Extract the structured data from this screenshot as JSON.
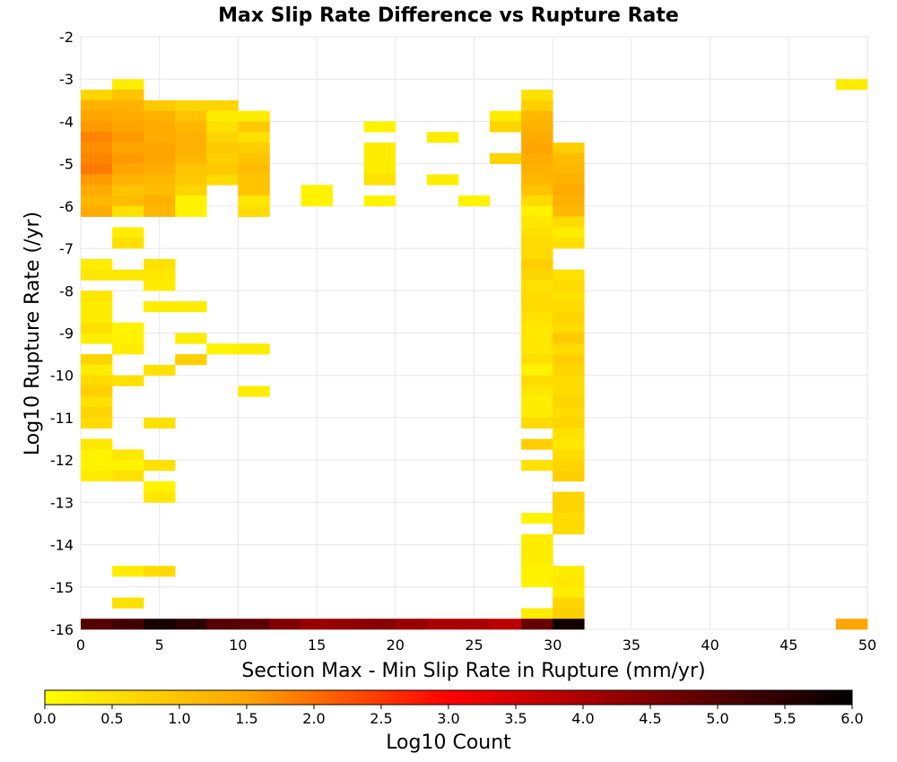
{
  "chart_data": {
    "type": "heatmap",
    "title": "Max Slip Rate Difference vs Rupture Rate",
    "xlabel": "Section Max - Min Slip Rate in Rupture (mm/yr)",
    "ylabel": "Log10 Rupture Rate (/yr)",
    "xlim": [
      0,
      50
    ],
    "ylim": [
      -16,
      -2
    ],
    "x_ticks": [
      0,
      5,
      10,
      15,
      20,
      25,
      30,
      35,
      40,
      45,
      50
    ],
    "y_ticks": [
      -2,
      -3,
      -4,
      -5,
      -6,
      -7,
      -8,
      -9,
      -10,
      -11,
      -12,
      -13,
      -14,
      -15,
      -16
    ],
    "grid": true,
    "cell_size": {
      "dx": 2,
      "dy": 0.25
    },
    "colorbar": {
      "label": "Log10 Count",
      "range": [
        0,
        6
      ],
      "ticks": [
        "0.0",
        "0.5",
        "1.0",
        "1.5",
        "2.0",
        "2.5",
        "3.0",
        "3.5",
        "4.0",
        "4.5",
        "5.0",
        "5.5",
        "6.0"
      ],
      "stops": [
        "#ffff00",
        "#ffa500",
        "#ff0000",
        "#000000"
      ]
    },
    "cells": [
      {
        "x": 0,
        "y": -3.5,
        "v": 0.7
      },
      {
        "x": 0,
        "y": -3.75,
        "v": 1.3
      },
      {
        "x": 0,
        "y": -4.0,
        "v": 1.5
      },
      {
        "x": 0,
        "y": -4.25,
        "v": 1.6
      },
      {
        "x": 0,
        "y": -4.5,
        "v": 1.8
      },
      {
        "x": 0,
        "y": -4.75,
        "v": 1.7
      },
      {
        "x": 0,
        "y": -5.0,
        "v": 1.8
      },
      {
        "x": 0,
        "y": -5.25,
        "v": 1.9
      },
      {
        "x": 0,
        "y": -5.5,
        "v": 1.6
      },
      {
        "x": 0,
        "y": -5.75,
        "v": 1.4
      },
      {
        "x": 0,
        "y": -6.0,
        "v": 1.2
      },
      {
        "x": 0,
        "y": -6.25,
        "v": 1.4
      },
      {
        "x": 2,
        "y": -3.25,
        "v": 0.3
      },
      {
        "x": 2,
        "y": -3.5,
        "v": 1.0
      },
      {
        "x": 2,
        "y": -3.75,
        "v": 1.3
      },
      {
        "x": 2,
        "y": -4.0,
        "v": 1.4
      },
      {
        "x": 2,
        "y": -4.25,
        "v": 1.5
      },
      {
        "x": 2,
        "y": -4.5,
        "v": 1.6
      },
      {
        "x": 2,
        "y": -4.75,
        "v": 1.5
      },
      {
        "x": 2,
        "y": -5.0,
        "v": 1.6
      },
      {
        "x": 2,
        "y": -5.25,
        "v": 1.5
      },
      {
        "x": 2,
        "y": -5.5,
        "v": 1.3
      },
      {
        "x": 2,
        "y": -5.75,
        "v": 1.0
      },
      {
        "x": 2,
        "y": -6.0,
        "v": 1.1
      },
      {
        "x": 2,
        "y": -6.25,
        "v": 0.5
      },
      {
        "x": 4,
        "y": -3.75,
        "v": 0.9
      },
      {
        "x": 4,
        "y": -4.0,
        "v": 1.3
      },
      {
        "x": 4,
        "y": -4.25,
        "v": 1.4
      },
      {
        "x": 4,
        "y": -4.5,
        "v": 1.4
      },
      {
        "x": 4,
        "y": -4.75,
        "v": 1.5
      },
      {
        "x": 4,
        "y": -5.0,
        "v": 1.5
      },
      {
        "x": 4,
        "y": -5.25,
        "v": 1.4
      },
      {
        "x": 4,
        "y": -5.5,
        "v": 1.2
      },
      {
        "x": 4,
        "y": -5.75,
        "v": 1.1
      },
      {
        "x": 4,
        "y": -6.0,
        "v": 1.3
      },
      {
        "x": 4,
        "y": -6.25,
        "v": 1.2
      },
      {
        "x": 6,
        "y": -3.75,
        "v": 0.7
      },
      {
        "x": 6,
        "y": -4.0,
        "v": 1.0
      },
      {
        "x": 6,
        "y": -4.25,
        "v": 1.2
      },
      {
        "x": 6,
        "y": -4.5,
        "v": 1.3
      },
      {
        "x": 6,
        "y": -4.75,
        "v": 1.3
      },
      {
        "x": 6,
        "y": -5.0,
        "v": 1.2
      },
      {
        "x": 6,
        "y": -5.25,
        "v": 1.0
      },
      {
        "x": 6,
        "y": -5.5,
        "v": 0.9
      },
      {
        "x": 6,
        "y": -5.75,
        "v": 0.7
      },
      {
        "x": 6,
        "y": -6.0,
        "v": 0.2
      },
      {
        "x": 6,
        "y": -6.25,
        "v": 0.2
      },
      {
        "x": 8,
        "y": -3.75,
        "v": 0.7
      },
      {
        "x": 8,
        "y": -4.0,
        "v": 0.3
      },
      {
        "x": 8,
        "y": -4.25,
        "v": 0.5
      },
      {
        "x": 8,
        "y": -4.5,
        "v": 0.7
      },
      {
        "x": 8,
        "y": -4.75,
        "v": 0.9
      },
      {
        "x": 8,
        "y": -5.0,
        "v": 0.8
      },
      {
        "x": 8,
        "y": -5.25,
        "v": 0.9
      },
      {
        "x": 8,
        "y": -5.5,
        "v": 0.6
      },
      {
        "x": 10,
        "y": -4.0,
        "v": 0.3
      },
      {
        "x": 10,
        "y": -4.25,
        "v": 0.9
      },
      {
        "x": 10,
        "y": -4.5,
        "v": 0.5
      },
      {
        "x": 10,
        "y": -4.75,
        "v": 0.8
      },
      {
        "x": 10,
        "y": -5.0,
        "v": 1.0
      },
      {
        "x": 10,
        "y": -5.25,
        "v": 1.1
      },
      {
        "x": 10,
        "y": -5.5,
        "v": 1.0
      },
      {
        "x": 10,
        "y": -5.75,
        "v": 1.0
      },
      {
        "x": 10,
        "y": -6.0,
        "v": 0.4
      },
      {
        "x": 10,
        "y": -6.25,
        "v": 0.6
      },
      {
        "x": 14,
        "y": -5.75,
        "v": 0.2
      },
      {
        "x": 14,
        "y": -6.0,
        "v": 0.2
      },
      {
        "x": 18,
        "y": -4.25,
        "v": 0.2
      },
      {
        "x": 18,
        "y": -4.75,
        "v": 0.3
      },
      {
        "x": 18,
        "y": -5.0,
        "v": 0.3
      },
      {
        "x": 18,
        "y": -5.25,
        "v": 0.3
      },
      {
        "x": 18,
        "y": -5.5,
        "v": 0.5
      },
      {
        "x": 18,
        "y": -6.0,
        "v": 0.2
      },
      {
        "x": 22,
        "y": -4.5,
        "v": 0.3
      },
      {
        "x": 22,
        "y": -5.5,
        "v": 0.3
      },
      {
        "x": 24,
        "y": -6.0,
        "v": 0.2
      },
      {
        "x": 26,
        "y": -4.0,
        "v": 0.3
      },
      {
        "x": 26,
        "y": -4.25,
        "v": 0.7
      },
      {
        "x": 26,
        "y": -5.0,
        "v": 0.7
      },
      {
        "x": 28,
        "y": -3.5,
        "v": 0.5
      },
      {
        "x": 28,
        "y": -3.75,
        "v": 0.8
      },
      {
        "x": 28,
        "y": -4.0,
        "v": 1.2
      },
      {
        "x": 28,
        "y": -4.25,
        "v": 1.3
      },
      {
        "x": 28,
        "y": -4.5,
        "v": 1.4
      },
      {
        "x": 28,
        "y": -4.75,
        "v": 1.5
      },
      {
        "x": 28,
        "y": -5.0,
        "v": 1.4
      },
      {
        "x": 28,
        "y": -5.25,
        "v": 1.3
      },
      {
        "x": 28,
        "y": -5.5,
        "v": 1.2
      },
      {
        "x": 28,
        "y": -5.75,
        "v": 1.0
      },
      {
        "x": 28,
        "y": -6.0,
        "v": 0.6
      },
      {
        "x": 28,
        "y": -6.25,
        "v": 0.2
      },
      {
        "x": 28,
        "y": -6.5,
        "v": 0.4
      },
      {
        "x": 28,
        "y": -6.75,
        "v": 0.5
      },
      {
        "x": 28,
        "y": -7.0,
        "v": 0.6
      },
      {
        "x": 28,
        "y": -7.25,
        "v": 0.6
      },
      {
        "x": 28,
        "y": -7.5,
        "v": 0.8
      },
      {
        "x": 28,
        "y": -7.75,
        "v": 0.7
      },
      {
        "x": 28,
        "y": -8.0,
        "v": 0.5
      },
      {
        "x": 28,
        "y": -8.25,
        "v": 0.6
      },
      {
        "x": 28,
        "y": -8.5,
        "v": 0.6
      },
      {
        "x": 28,
        "y": -8.75,
        "v": 0.5
      },
      {
        "x": 28,
        "y": -9.0,
        "v": 0.4
      },
      {
        "x": 28,
        "y": -9.25,
        "v": 0.4
      },
      {
        "x": 28,
        "y": -9.5,
        "v": 0.4
      },
      {
        "x": 28,
        "y": -9.75,
        "v": 0.5
      },
      {
        "x": 28,
        "y": -10.0,
        "v": 0.2
      },
      {
        "x": 28,
        "y": -10.25,
        "v": 0.6
      },
      {
        "x": 28,
        "y": -10.5,
        "v": 0.4
      },
      {
        "x": 28,
        "y": -10.75,
        "v": 0.3
      },
      {
        "x": 28,
        "y": -11.0,
        "v": 0.3
      },
      {
        "x": 28,
        "y": -11.25,
        "v": 0.6
      },
      {
        "x": 28,
        "y": -11.75,
        "v": 0.8
      },
      {
        "x": 28,
        "y": -12.25,
        "v": 0.5
      },
      {
        "x": 28,
        "y": -13.5,
        "v": 0.2
      },
      {
        "x": 28,
        "y": -14.0,
        "v": 0.3
      },
      {
        "x": 28,
        "y": -14.25,
        "v": 0.3
      },
      {
        "x": 28,
        "y": -14.5,
        "v": 0.3
      },
      {
        "x": 28,
        "y": -14.75,
        "v": 0.2
      },
      {
        "x": 28,
        "y": -15.0,
        "v": 0.2
      },
      {
        "x": 28,
        "y": -15.75,
        "v": 0.3
      },
      {
        "x": 30,
        "y": -4.75,
        "v": 0.8
      },
      {
        "x": 30,
        "y": -5.0,
        "v": 1.1
      },
      {
        "x": 30,
        "y": -5.25,
        "v": 1.2
      },
      {
        "x": 30,
        "y": -5.5,
        "v": 1.3
      },
      {
        "x": 30,
        "y": -5.75,
        "v": 1.4
      },
      {
        "x": 30,
        "y": -6.0,
        "v": 1.3
      },
      {
        "x": 30,
        "y": -6.25,
        "v": 1.2
      },
      {
        "x": 30,
        "y": -6.5,
        "v": 0.6
      },
      {
        "x": 30,
        "y": -6.75,
        "v": 0.3
      },
      {
        "x": 30,
        "y": -7.0,
        "v": 0.5
      },
      {
        "x": 30,
        "y": -7.75,
        "v": 0.5
      },
      {
        "x": 30,
        "y": -8.0,
        "v": 0.6
      },
      {
        "x": 30,
        "y": -8.25,
        "v": 0.5
      },
      {
        "x": 30,
        "y": -8.5,
        "v": 0.6
      },
      {
        "x": 30,
        "y": -8.75,
        "v": 0.7
      },
      {
        "x": 30,
        "y": -9.0,
        "v": 0.6
      },
      {
        "x": 30,
        "y": -9.25,
        "v": 0.9
      },
      {
        "x": 30,
        "y": -9.5,
        "v": 0.6
      },
      {
        "x": 30,
        "y": -9.75,
        "v": 0.8
      },
      {
        "x": 30,
        "y": -10.0,
        "v": 0.7
      },
      {
        "x": 30,
        "y": -10.25,
        "v": 0.6
      },
      {
        "x": 30,
        "y": -10.5,
        "v": 0.6
      },
      {
        "x": 30,
        "y": -10.75,
        "v": 0.7
      },
      {
        "x": 30,
        "y": -11.0,
        "v": 0.6
      },
      {
        "x": 30,
        "y": -11.25,
        "v": 0.7
      },
      {
        "x": 30,
        "y": -11.5,
        "v": 0.5
      },
      {
        "x": 30,
        "y": -11.75,
        "v": 0.4
      },
      {
        "x": 30,
        "y": -12.0,
        "v": 0.6
      },
      {
        "x": 30,
        "y": -12.25,
        "v": 0.7
      },
      {
        "x": 30,
        "y": -12.5,
        "v": 0.8
      },
      {
        "x": 30,
        "y": -13.0,
        "v": 0.7
      },
      {
        "x": 30,
        "y": -13.25,
        "v": 0.7
      },
      {
        "x": 30,
        "y": -13.5,
        "v": 0.6
      },
      {
        "x": 30,
        "y": -13.75,
        "v": 0.6
      },
      {
        "x": 30,
        "y": -14.75,
        "v": 0.3
      },
      {
        "x": 30,
        "y": -15.0,
        "v": 0.4
      },
      {
        "x": 30,
        "y": -15.25,
        "v": 0.3
      },
      {
        "x": 30,
        "y": -15.5,
        "v": 0.7
      },
      {
        "x": 30,
        "y": -15.75,
        "v": 0.8
      },
      {
        "x": 48,
        "y": -3.25,
        "v": 0.3
      },
      {
        "x": 0,
        "y": -7.5,
        "v": 0.3
      },
      {
        "x": 0,
        "y": -7.75,
        "v": 0.4
      },
      {
        "x": 2,
        "y": -6.75,
        "v": 0.3
      },
      {
        "x": 2,
        "y": -7.0,
        "v": 0.5
      },
      {
        "x": 2,
        "y": -7.75,
        "v": 0.4
      },
      {
        "x": 4,
        "y": -7.5,
        "v": 0.5
      },
      {
        "x": 4,
        "y": -7.75,
        "v": 0.4
      },
      {
        "x": 4,
        "y": -8.0,
        "v": 0.3
      },
      {
        "x": 0,
        "y": -8.25,
        "v": 0.4
      },
      {
        "x": 0,
        "y": -8.5,
        "v": 0.3
      },
      {
        "x": 0,
        "y": -8.75,
        "v": 0.3
      },
      {
        "x": 0,
        "y": -9.0,
        "v": 0.5
      },
      {
        "x": 0,
        "y": -9.25,
        "v": 0.3
      },
      {
        "x": 0,
        "y": -9.75,
        "v": 0.7
      },
      {
        "x": 0,
        "y": -10.0,
        "v": 0.3
      },
      {
        "x": 0,
        "y": -10.25,
        "v": 0.6
      },
      {
        "x": 0,
        "y": -10.5,
        "v": 0.8
      },
      {
        "x": 0,
        "y": -10.75,
        "v": 0.5
      },
      {
        "x": 0,
        "y": -11.0,
        "v": 0.7
      },
      {
        "x": 0,
        "y": -11.25,
        "v": 0.6
      },
      {
        "x": 2,
        "y": -9.0,
        "v": 0.2
      },
      {
        "x": 2,
        "y": -9.25,
        "v": 0.2
      },
      {
        "x": 2,
        "y": -9.5,
        "v": 0.3
      },
      {
        "x": 2,
        "y": -10.25,
        "v": 0.5
      },
      {
        "x": 4,
        "y": -8.5,
        "v": 0.3
      },
      {
        "x": 4,
        "y": -10.0,
        "v": 0.5
      },
      {
        "x": 4,
        "y": -11.25,
        "v": 0.5
      },
      {
        "x": 6,
        "y": -8.5,
        "v": 0.3
      },
      {
        "x": 6,
        "y": -9.25,
        "v": 0.3
      },
      {
        "x": 6,
        "y": -9.75,
        "v": 0.8
      },
      {
        "x": 8,
        "y": -9.5,
        "v": 0.2
      },
      {
        "x": 10,
        "y": -9.5,
        "v": 0.3
      },
      {
        "x": 10,
        "y": -10.5,
        "v": 0.3
      },
      {
        "x": 0,
        "y": -11.75,
        "v": 0.4
      },
      {
        "x": 0,
        "y": -12.0,
        "v": 0.2
      },
      {
        "x": 0,
        "y": -12.25,
        "v": 0.2
      },
      {
        "x": 0,
        "y": -12.5,
        "v": 0.3
      },
      {
        "x": 2,
        "y": -12.0,
        "v": 0.4
      },
      {
        "x": 2,
        "y": -12.25,
        "v": 0.2
      },
      {
        "x": 2,
        "y": -12.5,
        "v": 0.5
      },
      {
        "x": 4,
        "y": -12.25,
        "v": 0.5
      },
      {
        "x": 4,
        "y": -12.75,
        "v": 0.2
      },
      {
        "x": 4,
        "y": -13.0,
        "v": 0.4
      },
      {
        "x": 2,
        "y": -14.75,
        "v": 0.3
      },
      {
        "x": 4,
        "y": -14.75,
        "v": 0.6
      },
      {
        "x": 2,
        "y": -15.5,
        "v": 0.5
      },
      {
        "x": 0,
        "y": -16.0,
        "v": 5.0
      },
      {
        "x": 2,
        "y": -16.0,
        "v": 5.2
      },
      {
        "x": 4,
        "y": -16.0,
        "v": 5.7
      },
      {
        "x": 6,
        "y": -16.0,
        "v": 5.5
      },
      {
        "x": 8,
        "y": -16.0,
        "v": 5.0
      },
      {
        "x": 10,
        "y": -16.0,
        "v": 4.9
      },
      {
        "x": 12,
        "y": -16.0,
        "v": 4.5
      },
      {
        "x": 14,
        "y": -16.0,
        "v": 4.2
      },
      {
        "x": 16,
        "y": -16.0,
        "v": 4.3
      },
      {
        "x": 18,
        "y": -16.0,
        "v": 4.4
      },
      {
        "x": 20,
        "y": -16.0,
        "v": 4.2
      },
      {
        "x": 22,
        "y": -16.0,
        "v": 4.0
      },
      {
        "x": 24,
        "y": -16.0,
        "v": 4.0
      },
      {
        "x": 26,
        "y": -16.0,
        "v": 3.8
      },
      {
        "x": 28,
        "y": -16.0,
        "v": 4.8
      },
      {
        "x": 30,
        "y": -16.0,
        "v": 5.8
      },
      {
        "x": 48,
        "y": -16.0,
        "v": 1.5
      }
    ]
  }
}
